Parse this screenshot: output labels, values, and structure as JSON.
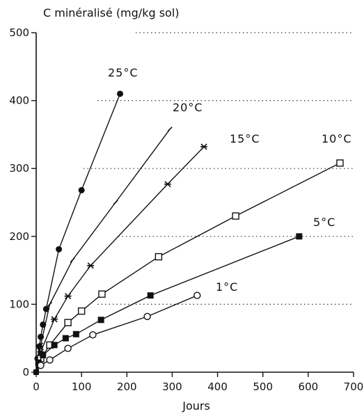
{
  "chart_data": {
    "type": "line",
    "ylabel": "C minéralisé (mg/kg sol)",
    "xlabel": "Jours",
    "xlim": [
      0,
      700
    ],
    "ylim": [
      0,
      500
    ],
    "xticks": [
      "0",
      "100",
      "200",
      "300",
      "400",
      "500",
      "600",
      "700"
    ],
    "yticks": [
      "0",
      "100",
      "200",
      "300",
      "400",
      "500"
    ],
    "grid": "dotted horizontal",
    "series": [
      {
        "name": "25°C",
        "marker": "filled-circle",
        "x": [
          0,
          3,
          7,
          10,
          15,
          22,
          50,
          100,
          185
        ],
        "y": [
          0,
          20,
          38,
          52,
          70,
          93,
          181,
          268,
          410
        ]
      },
      {
        "name": "20°C",
        "marker": "tick",
        "x": [
          0,
          10,
          30,
          80,
          175,
          295
        ],
        "y": [
          0,
          40,
          100,
          165,
          250,
          358
        ]
      },
      {
        "name": "15°C",
        "marker": "star",
        "x": [
          0,
          10,
          40,
          70,
          120,
          290,
          370
        ],
        "y": [
          0,
          30,
          78,
          112,
          157,
          277,
          332
        ]
      },
      {
        "name": "10°C",
        "marker": "open-square",
        "x": [
          0,
          10,
          30,
          70,
          100,
          145,
          270,
          440,
          670
        ],
        "y": [
          0,
          20,
          40,
          73,
          90,
          115,
          170,
          230,
          308
        ]
      },
      {
        "name": "5°C",
        "marker": "filled-square",
        "x": [
          0,
          5,
          15,
          40,
          65,
          88,
          143,
          252,
          580
        ],
        "y": [
          0,
          14,
          25,
          40,
          50,
          56,
          77,
          113,
          200
        ]
      },
      {
        "name": "1°C",
        "marker": "open-circle",
        "x": [
          0,
          10,
          30,
          70,
          125,
          245,
          355
        ],
        "y": [
          0,
          10,
          18,
          35,
          55,
          82,
          113
        ]
      }
    ]
  }
}
